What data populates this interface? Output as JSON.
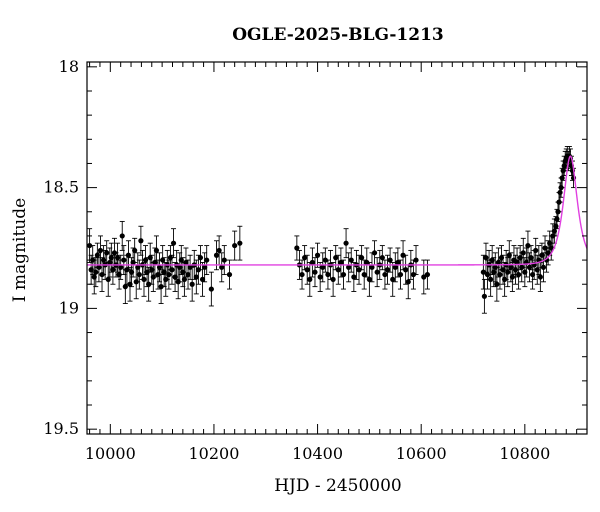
{
  "chart_data": {
    "type": "scatter",
    "title": "OGLE-2025-BLG-1213",
    "xlabel": "HJD - 2450000",
    "ylabel": "I magnitude",
    "xlim": [
      9955,
      10920
    ],
    "ylim": [
      19.52,
      17.98
    ],
    "y_inverted": true,
    "x_ticks": [
      10000,
      10200,
      10400,
      10600,
      10800
    ],
    "x_tick_labels": [
      "10000",
      "10200",
      "10400",
      "10600",
      "10800"
    ],
    "y_ticks": [
      18,
      18.5,
      19,
      19.5
    ],
    "y_tick_labels": [
      "18",
      "18.5",
      "19",
      "19.5"
    ],
    "grid": false,
    "model_color": "#e040e0",
    "point_color": "#000000",
    "model": {
      "baseline_mag": 18.82,
      "peak_time": 10888,
      "peak_mag": 18.37
    },
    "series": [
      {
        "type": "scatter-errorbar",
        "points": [
          [
            9960,
            18.74,
            0.07
          ],
          [
            9963,
            18.84,
            0.06
          ],
          [
            9966,
            18.8,
            0.06
          ],
          [
            9969,
            18.87,
            0.07
          ],
          [
            9972,
            18.85,
            0.06
          ],
          [
            9975,
            18.78,
            0.05
          ],
          [
            9978,
            18.83,
            0.06
          ],
          [
            9981,
            18.76,
            0.06
          ],
          [
            9984,
            18.86,
            0.07
          ],
          [
            9987,
            18.8,
            0.06
          ],
          [
            9990,
            18.82,
            0.06
          ],
          [
            9993,
            18.77,
            0.05
          ],
          [
            9996,
            18.88,
            0.07
          ],
          [
            9999,
            18.81,
            0.06
          ],
          [
            10002,
            18.79,
            0.06
          ],
          [
            10005,
            18.84,
            0.06
          ],
          [
            10008,
            18.77,
            0.06
          ],
          [
            10011,
            18.82,
            0.05
          ],
          [
            10014,
            18.79,
            0.06
          ],
          [
            10017,
            18.86,
            0.06
          ],
          [
            10020,
            18.83,
            0.05
          ],
          [
            10023,
            18.7,
            0.06
          ],
          [
            10026,
            18.8,
            0.06
          ],
          [
            10029,
            18.91,
            0.07
          ],
          [
            10032,
            18.84,
            0.06
          ],
          [
            10035,
            18.78,
            0.06
          ],
          [
            10038,
            18.9,
            0.07
          ],
          [
            10041,
            18.85,
            0.06
          ],
          [
            10044,
            18.81,
            0.06
          ],
          [
            10047,
            18.76,
            0.05
          ],
          [
            10050,
            18.89,
            0.07
          ],
          [
            10053,
            18.83,
            0.06
          ],
          [
            10056,
            18.86,
            0.06
          ],
          [
            10059,
            18.72,
            0.06
          ],
          [
            10062,
            18.82,
            0.06
          ],
          [
            10065,
            18.88,
            0.07
          ],
          [
            10068,
            18.8,
            0.06
          ],
          [
            10071,
            18.85,
            0.06
          ],
          [
            10074,
            18.9,
            0.07
          ],
          [
            10077,
            18.79,
            0.06
          ],
          [
            10080,
            18.84,
            0.06
          ],
          [
            10083,
            18.87,
            0.06
          ],
          [
            10086,
            18.81,
            0.06
          ],
          [
            10089,
            18.76,
            0.06
          ],
          [
            10092,
            18.86,
            0.06
          ],
          [
            10095,
            18.83,
            0.06
          ],
          [
            10098,
            18.91,
            0.07
          ],
          [
            10101,
            18.8,
            0.06
          ],
          [
            10104,
            18.85,
            0.06
          ],
          [
            10107,
            18.88,
            0.07
          ],
          [
            10110,
            18.82,
            0.06
          ],
          [
            10113,
            18.86,
            0.06
          ],
          [
            10116,
            18.79,
            0.05
          ],
          [
            10119,
            18.84,
            0.06
          ],
          [
            10122,
            18.73,
            0.06
          ],
          [
            10125,
            18.87,
            0.06
          ],
          [
            10128,
            18.82,
            0.06
          ],
          [
            10131,
            18.89,
            0.07
          ],
          [
            10134,
            18.83,
            0.06
          ],
          [
            10137,
            18.8,
            0.06
          ],
          [
            10140,
            18.85,
            0.06
          ],
          [
            10143,
            18.88,
            0.07
          ],
          [
            10146,
            18.81,
            0.06
          ],
          [
            10150,
            18.86,
            0.06
          ],
          [
            10154,
            18.83,
            0.05
          ],
          [
            10158,
            18.9,
            0.07
          ],
          [
            10162,
            18.82,
            0.06
          ],
          [
            10166,
            18.87,
            0.07
          ],
          [
            10170,
            18.84,
            0.06
          ],
          [
            10174,
            18.79,
            0.05
          ],
          [
            10178,
            18.88,
            0.07
          ],
          [
            10182,
            18.83,
            0.06
          ],
          [
            10186,
            18.8,
            0.06
          ],
          [
            10195,
            18.92,
            0.07
          ],
          [
            10205,
            18.78,
            0.06
          ],
          [
            10210,
            18.76,
            0.06
          ],
          [
            10215,
            18.83,
            0.06
          ],
          [
            10220,
            18.8,
            0.06
          ],
          [
            10230,
            18.86,
            0.06
          ],
          [
            10240,
            18.74,
            0.06
          ],
          [
            10250,
            18.73,
            0.07
          ],
          [
            10360,
            18.75,
            0.05
          ],
          [
            10365,
            18.82,
            0.06
          ],
          [
            10370,
            18.86,
            0.06
          ],
          [
            10375,
            18.79,
            0.05
          ],
          [
            10380,
            18.84,
            0.06
          ],
          [
            10385,
            18.88,
            0.07
          ],
          [
            10390,
            18.81,
            0.06
          ],
          [
            10395,
            18.85,
            0.06
          ],
          [
            10400,
            18.78,
            0.05
          ],
          [
            10405,
            18.87,
            0.06
          ],
          [
            10410,
            18.83,
            0.06
          ],
          [
            10415,
            18.8,
            0.05
          ],
          [
            10420,
            18.86,
            0.06
          ],
          [
            10425,
            18.82,
            0.06
          ],
          [
            10430,
            18.88,
            0.07
          ],
          [
            10435,
            18.79,
            0.05
          ],
          [
            10440,
            18.84,
            0.06
          ],
          [
            10445,
            18.81,
            0.06
          ],
          [
            10450,
            18.86,
            0.06
          ],
          [
            10455,
            18.73,
            0.06
          ],
          [
            10460,
            18.83,
            0.06
          ],
          [
            10465,
            18.8,
            0.05
          ],
          [
            10470,
            18.87,
            0.06
          ],
          [
            10475,
            18.82,
            0.06
          ],
          [
            10480,
            18.84,
            0.06
          ],
          [
            10485,
            18.79,
            0.05
          ],
          [
            10490,
            18.86,
            0.06
          ],
          [
            10495,
            18.81,
            0.06
          ],
          [
            10500,
            18.88,
            0.07
          ],
          [
            10505,
            18.83,
            0.06
          ],
          [
            10510,
            18.77,
            0.05
          ],
          [
            10515,
            18.85,
            0.06
          ],
          [
            10520,
            18.82,
            0.06
          ],
          [
            10525,
            18.79,
            0.05
          ],
          [
            10530,
            18.86,
            0.06
          ],
          [
            10535,
            18.84,
            0.06
          ],
          [
            10540,
            18.8,
            0.05
          ],
          [
            10545,
            18.88,
            0.07
          ],
          [
            10550,
            18.83,
            0.06
          ],
          [
            10555,
            18.81,
            0.06
          ],
          [
            10560,
            18.86,
            0.06
          ],
          [
            10565,
            18.78,
            0.06
          ],
          [
            10570,
            18.84,
            0.06
          ],
          [
            10575,
            18.89,
            0.07
          ],
          [
            10580,
            18.82,
            0.06
          ],
          [
            10585,
            18.86,
            0.06
          ],
          [
            10590,
            18.8,
            0.06
          ],
          [
            10605,
            18.87,
            0.07
          ],
          [
            10612,
            18.86,
            0.06
          ],
          [
            10720,
            18.85,
            0.07
          ],
          [
            10722,
            18.95,
            0.07
          ],
          [
            10725,
            18.79,
            0.06
          ],
          [
            10728,
            18.86,
            0.06
          ],
          [
            10731,
            18.82,
            0.06
          ],
          [
            10734,
            18.88,
            0.07
          ],
          [
            10737,
            18.8,
            0.06
          ],
          [
            10740,
            18.85,
            0.06
          ],
          [
            10743,
            18.83,
            0.06
          ],
          [
            10746,
            18.9,
            0.07
          ],
          [
            10749,
            18.81,
            0.06
          ],
          [
            10752,
            18.86,
            0.06
          ],
          [
            10755,
            18.79,
            0.05
          ],
          [
            10758,
            18.84,
            0.06
          ],
          [
            10761,
            18.88,
            0.07
          ],
          [
            10764,
            18.82,
            0.06
          ],
          [
            10767,
            18.85,
            0.06
          ],
          [
            10770,
            18.78,
            0.06
          ],
          [
            10773,
            18.83,
            0.06
          ],
          [
            10776,
            18.87,
            0.06
          ],
          [
            10779,
            18.8,
            0.06
          ],
          [
            10782,
            18.84,
            0.06
          ],
          [
            10785,
            18.81,
            0.06
          ],
          [
            10788,
            18.86,
            0.06
          ],
          [
            10791,
            18.79,
            0.05
          ],
          [
            10794,
            18.83,
            0.06
          ],
          [
            10797,
            18.77,
            0.06
          ],
          [
            10800,
            18.85,
            0.06
          ],
          [
            10803,
            18.81,
            0.06
          ],
          [
            10806,
            18.74,
            0.06
          ],
          [
            10809,
            18.83,
            0.06
          ],
          [
            10812,
            18.79,
            0.05
          ],
          [
            10815,
            18.86,
            0.06
          ],
          [
            10818,
            18.82,
            0.06
          ],
          [
            10821,
            18.76,
            0.05
          ],
          [
            10824,
            18.84,
            0.06
          ],
          [
            10827,
            18.8,
            0.06
          ],
          [
            10830,
            18.87,
            0.06
          ],
          [
            10833,
            18.78,
            0.05
          ],
          [
            10836,
            18.83,
            0.06
          ],
          [
            10839,
            18.75,
            0.05
          ],
          [
            10842,
            18.8,
            0.05
          ],
          [
            10845,
            18.77,
            0.05
          ],
          [
            10848,
            18.73,
            0.05
          ],
          [
            10851,
            18.75,
            0.05
          ],
          [
            10854,
            18.7,
            0.05
          ],
          [
            10857,
            18.68,
            0.05
          ],
          [
            10860,
            18.66,
            0.04
          ],
          [
            10862,
            18.63,
            0.04
          ],
          [
            10864,
            18.6,
            0.04
          ],
          [
            10866,
            18.56,
            0.04
          ],
          [
            10868,
            18.52,
            0.04
          ],
          [
            10870,
            18.5,
            0.04
          ],
          [
            10872,
            18.46,
            0.04
          ],
          [
            10874,
            18.43,
            0.04
          ],
          [
            10876,
            18.41,
            0.04
          ],
          [
            10878,
            18.39,
            0.04
          ],
          [
            10880,
            18.38,
            0.04
          ],
          [
            10882,
            18.37,
            0.04
          ],
          [
            10884,
            18.39,
            0.04
          ],
          [
            10886,
            18.37,
            0.04
          ],
          [
            10888,
            18.38,
            0.04
          ],
          [
            10890,
            18.41,
            0.04
          ],
          [
            10892,
            18.43,
            0.04
          ],
          [
            10894,
            18.46,
            0.04
          ]
        ]
      }
    ]
  }
}
